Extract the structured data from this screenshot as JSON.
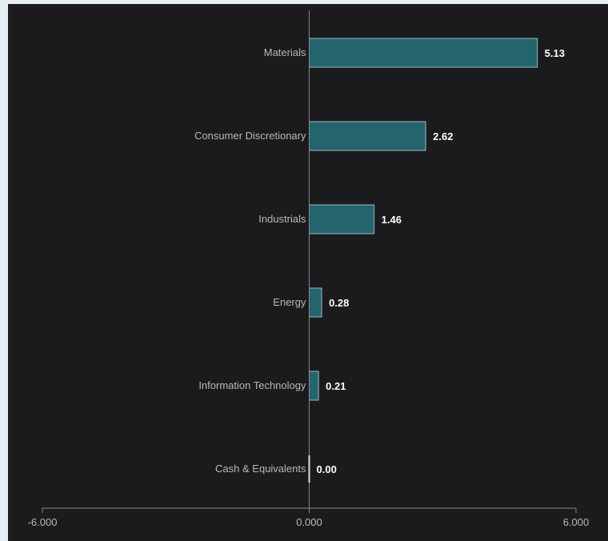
{
  "chart_data": {
    "type": "bar",
    "orientation": "horizontal",
    "categories": [
      "Materials",
      "Consumer Discretionary",
      "Industrials",
      "Energy",
      "Information Technology",
      "Cash & Equivalents"
    ],
    "values": [
      5.13,
      2.62,
      1.46,
      0.28,
      0.21,
      0.0
    ],
    "value_labels": [
      "5.13",
      "2.62",
      "1.46",
      "0.28",
      "0.21",
      "0.00"
    ],
    "xlim": [
      -6,
      6
    ],
    "x_ticks": [
      -6,
      0,
      6
    ],
    "x_tick_labels": [
      "-6.000",
      "0.000",
      "6.000"
    ],
    "grid": false,
    "legend": "none"
  },
  "colors": {
    "background": "#1b1b1d",
    "page_border": "#e4eef3",
    "bar_fill": "#24646d",
    "bar_stroke": "#9ab8bd",
    "axis": "#8a8a8a",
    "category_text": "#b9b9b9",
    "value_text": "#ffffff"
  }
}
